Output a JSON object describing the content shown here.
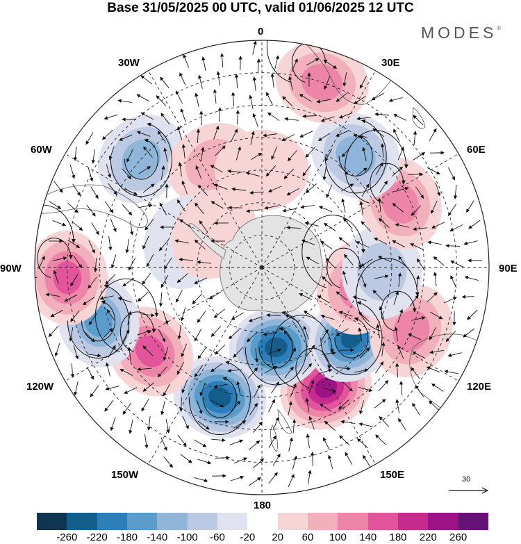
{
  "title": "Base 31/05/2025 00 UTC, valid 01/06/2025 12 UTC",
  "brand": "MODES",
  "brand_mark": "©",
  "longitude_labels": {
    "lon_0": "0",
    "lon_30e": "30E",
    "lon_60e": "60E",
    "lon_90e": "90E",
    "lon_120e": "120E",
    "lon_150e": "150E",
    "lon_180": "180",
    "lon_150w": "150W",
    "lon_120w": "120W",
    "lon_90w": "90W",
    "lon_60w": "60W",
    "lon_30w": "30W"
  },
  "reference_vector": {
    "value": "30"
  },
  "colorbar": {
    "colors": [
      "#0f3550",
      "#145e8c",
      "#2c7fb8",
      "#5a9dcb",
      "#8fb6d9",
      "#bcc9e3",
      "#e1e2ef",
      "#ffffff",
      "#f7d4d6",
      "#f2b0bd",
      "#ec85a8",
      "#e2549c",
      "#c72b8e",
      "#9b1385",
      "#651276"
    ],
    "ticks": [
      "-260",
      "-220",
      "-180",
      "-140",
      "-100",
      "-60",
      "-20",
      "20",
      "60",
      "100",
      "140",
      "180",
      "220",
      "260"
    ]
  },
  "anomalies": [
    {
      "lon": 152,
      "lat": -48,
      "value": 240
    },
    {
      "lon": 170,
      "lat": -65,
      "value": -230
    },
    {
      "lon": -162,
      "lat": -48,
      "value": -240
    },
    {
      "lon": 128,
      "lat": -55,
      "value": -220
    },
    {
      "lon": -127,
      "lat": -47,
      "value": 170
    },
    {
      "lon": -108,
      "lat": -37,
      "value": -150
    },
    {
      "lon": -93,
      "lat": -30,
      "value": 150
    },
    {
      "lon": 102,
      "lat": -60,
      "value": 110
    },
    {
      "lon": 113,
      "lat": -40,
      "value": 110
    },
    {
      "lon": 92,
      "lat": -53,
      "value": -90
    },
    {
      "lon": 65,
      "lat": -43,
      "value": 120
    },
    {
      "lon": 40,
      "lat": -45,
      "value": -120
    },
    {
      "lon": 18,
      "lat": -30,
      "value": 110
    },
    {
      "lon": -48,
      "lat": -40,
      "value": -100
    },
    {
      "lon": -25,
      "lat": -55,
      "value": 60
    },
    {
      "lon": 0,
      "lat": -60,
      "value": 40
    },
    {
      "lon": -72,
      "lat": -65,
      "value": -40
    },
    {
      "lon": -55,
      "lat": -72,
      "value": 50
    }
  ]
}
